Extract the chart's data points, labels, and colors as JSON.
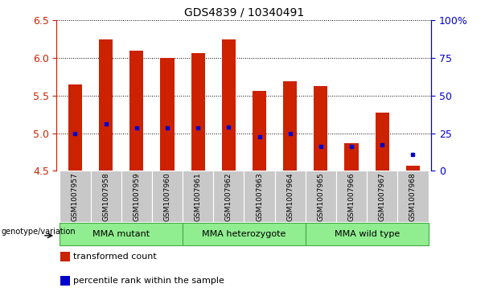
{
  "title": "GDS4839 / 10340491",
  "samples": [
    "GSM1007957",
    "GSM1007958",
    "GSM1007959",
    "GSM1007960",
    "GSM1007961",
    "GSM1007962",
    "GSM1007963",
    "GSM1007964",
    "GSM1007965",
    "GSM1007966",
    "GSM1007967",
    "GSM1007968"
  ],
  "bar_tops": [
    5.65,
    6.25,
    6.1,
    6.0,
    6.07,
    6.25,
    5.56,
    5.69,
    5.63,
    4.87,
    5.27,
    4.57
  ],
  "bar_base": 4.5,
  "blue_dot_values": [
    5.0,
    5.12,
    5.07,
    5.07,
    5.07,
    5.08,
    4.95,
    5.0,
    4.83,
    4.83,
    4.85,
    4.72
  ],
  "groups": [
    {
      "label": "MMA mutant",
      "start": 0,
      "end": 3
    },
    {
      "label": "MMA heterozygote",
      "start": 4,
      "end": 7
    },
    {
      "label": "MMA wild type",
      "start": 8,
      "end": 11
    }
  ],
  "ylim_left": [
    4.5,
    6.5
  ],
  "ylim_right": [
    0,
    100
  ],
  "yticks_left": [
    4.5,
    5.0,
    5.5,
    6.0,
    6.5
  ],
  "yticks_right": [
    0,
    25,
    50,
    75,
    100
  ],
  "ytick_labels_right": [
    "0",
    "25",
    "50",
    "75",
    "100%"
  ],
  "bar_color": "#cc2200",
  "dot_color": "#0000cc",
  "left_tick_color": "#cc2200",
  "right_tick_color": "#0000cc",
  "background_xaxis": "#c8c8c8",
  "group_color": "#90EE90",
  "group_border_color": "#44aa44",
  "genotype_label": "genotype/variation",
  "legend_items": [
    "transformed count",
    "percentile rank within the sample"
  ],
  "legend_colors": [
    "#cc2200",
    "#0000cc"
  ],
  "bar_width": 0.45
}
